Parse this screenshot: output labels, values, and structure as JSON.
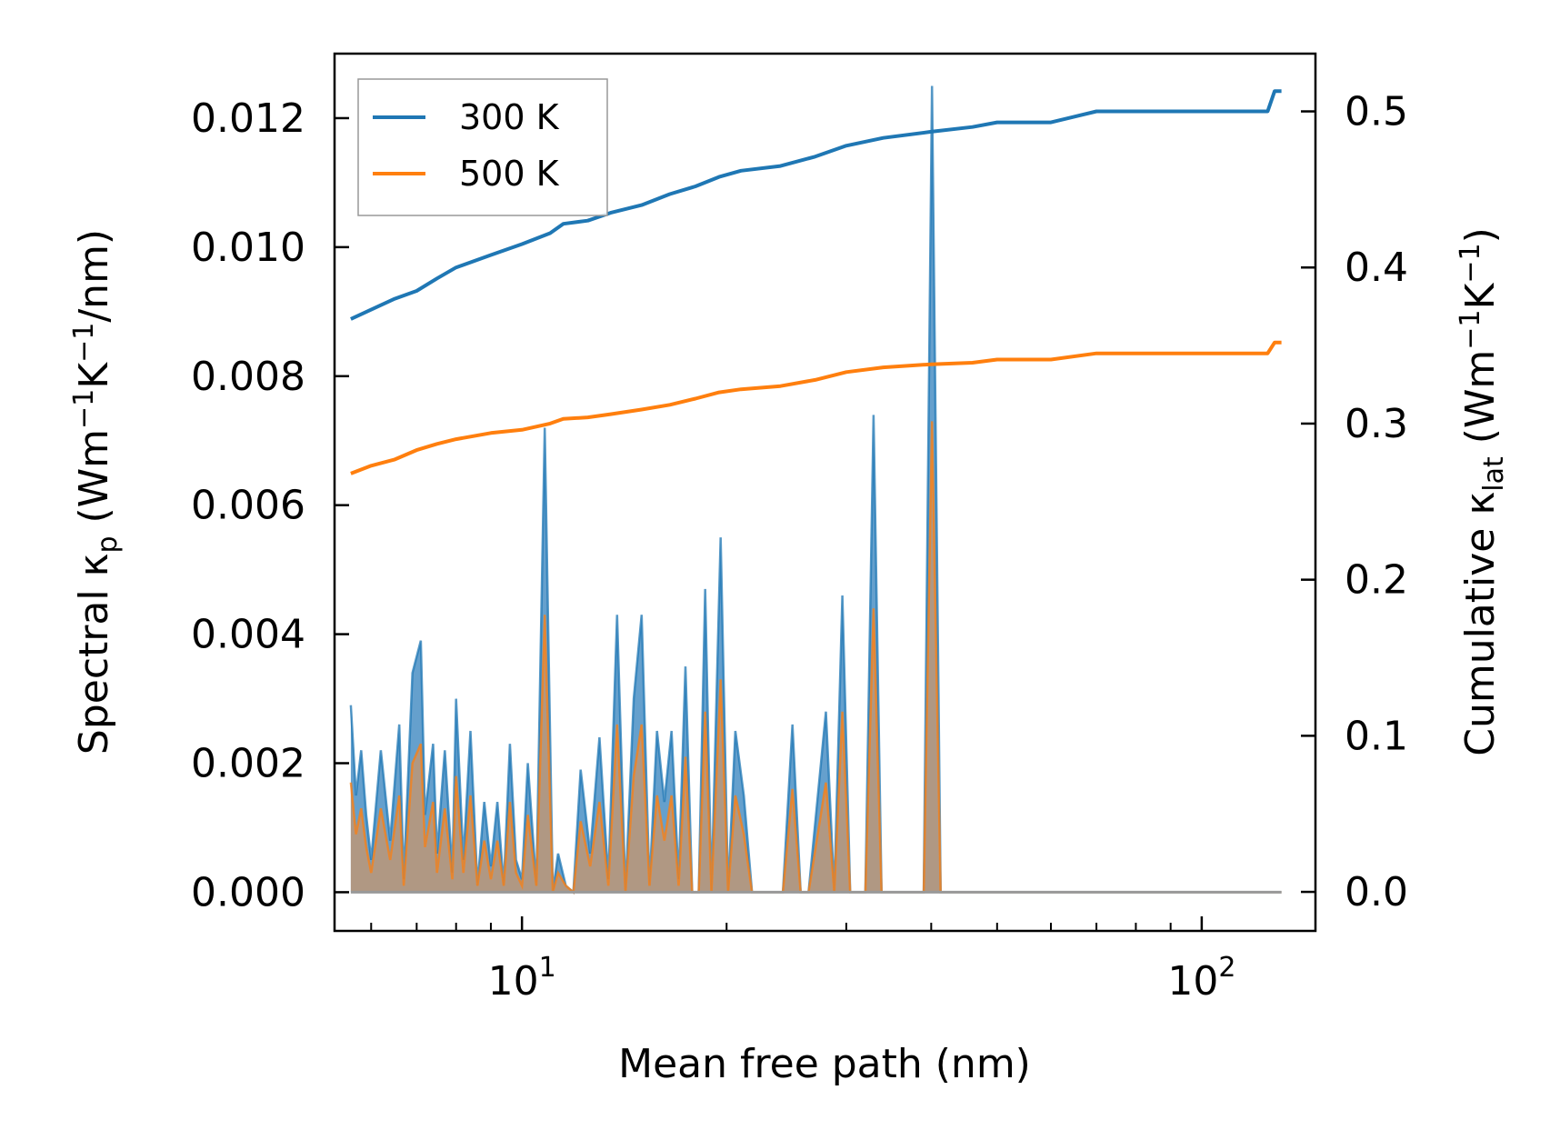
{
  "chart_data": {
    "type": "line",
    "xscale": "log",
    "xlim": [
      5.3,
      147
    ],
    "ylim_left": [
      -0.0006,
      0.013
    ],
    "ylim_right": [
      -0.025,
      0.537
    ],
    "xlabel": "Mean free path (nm)",
    "ylabel_left": {
      "base": "Spectral κ",
      "sub": "p",
      "units_open": " (Wm",
      "sup1": "−1",
      "mid": "K",
      "sup2": "−1",
      "units_close": "/nm)"
    },
    "ylabel_right": {
      "base": "Cumulative κ",
      "sub": "lat",
      "units_open": " (Wm",
      "sup1": "−1",
      "mid": "K",
      "sup2": "−1",
      "units_close": ")"
    },
    "xticks": [
      {
        "value": 10,
        "base": "10",
        "exp": "1"
      },
      {
        "value": 100,
        "base": "10",
        "exp": "2"
      }
    ],
    "yticks_left": [
      "0.000",
      "0.002",
      "0.004",
      "0.006",
      "0.008",
      "0.010",
      "0.012"
    ],
    "yticks_right": [
      "0.0",
      "0.1",
      "0.2",
      "0.3",
      "0.4",
      "0.5"
    ],
    "legend": {
      "position": "top-left",
      "entries": [
        "300 K",
        "500 K"
      ]
    },
    "colors": {
      "s300": "#1f77b4",
      "s500": "#ff7f0e",
      "fill300": "#4a8fc4",
      "fill500": "#c9956a"
    },
    "cumulative": [
      {
        "name": "300 K",
        "x": [
          5.6,
          6.0,
          6.5,
          7.0,
          7.5,
          8.0,
          9.0,
          10.0,
          11.0,
          11.5,
          12.5,
          13.5,
          15.0,
          16.5,
          18.0,
          19.5,
          21.0,
          24.0,
          27.0,
          30.0,
          34.0,
          40.0,
          46.0,
          50.0,
          60.0,
          70.0,
          90.0,
          110.0,
          125.0,
          128.0,
          131.0
        ],
        "values": [
          0.367,
          0.373,
          0.38,
          0.385,
          0.393,
          0.4,
          0.408,
          0.415,
          0.422,
          0.428,
          0.43,
          0.435,
          0.44,
          0.447,
          0.452,
          0.458,
          0.462,
          0.465,
          0.471,
          0.478,
          0.483,
          0.487,
          0.49,
          0.493,
          0.493,
          0.5,
          0.5,
          0.5,
          0.5,
          0.513,
          0.513
        ]
      },
      {
        "name": "500 K",
        "x": [
          5.6,
          6.0,
          6.5,
          7.0,
          7.5,
          8.0,
          9.0,
          10.0,
          11.0,
          11.5,
          12.5,
          13.5,
          15.0,
          16.5,
          18.0,
          19.5,
          21.0,
          24.0,
          27.0,
          30.0,
          34.0,
          40.0,
          46.0,
          50.0,
          60.0,
          70.0,
          90.0,
          110.0,
          125.0,
          128.0,
          131.0
        ],
        "values": [
          0.268,
          0.273,
          0.277,
          0.283,
          0.287,
          0.29,
          0.294,
          0.296,
          0.3,
          0.303,
          0.304,
          0.306,
          0.309,
          0.312,
          0.316,
          0.32,
          0.322,
          0.324,
          0.328,
          0.333,
          0.336,
          0.338,
          0.339,
          0.341,
          0.341,
          0.345,
          0.345,
          0.345,
          0.345,
          0.352,
          0.352
        ]
      }
    ],
    "spectral": [
      {
        "name": "300 K",
        "x": [
          5.6,
          5.7,
          5.8,
          5.9,
          6.0,
          6.2,
          6.4,
          6.6,
          6.7,
          6.9,
          7.1,
          7.2,
          7.4,
          7.5,
          7.7,
          7.9,
          8.0,
          8.2,
          8.4,
          8.6,
          8.8,
          9.0,
          9.2,
          9.4,
          9.6,
          9.8,
          10.0,
          10.2,
          10.5,
          10.8,
          11.1,
          11.3,
          11.6,
          11.9,
          12.2,
          12.6,
          13.0,
          13.4,
          13.8,
          14.2,
          14.6,
          15.0,
          15.4,
          15.8,
          16.2,
          16.6,
          17.0,
          17.4,
          17.8,
          18.2,
          18.6,
          19.0,
          19.6,
          20.1,
          20.6,
          21.2,
          21.8,
          24.2,
          25.0,
          25.7,
          26.4,
          28.0,
          28.8,
          29.6,
          30.4,
          32.0,
          32.9,
          33.8,
          34.7,
          39.0,
          40.1,
          41.3,
          42.5,
          45.0,
          46.3,
          47.6,
          49.0,
          50.4,
          51.8,
          64.0,
          66.1,
          68.0,
          69.9,
          119.0,
          122.0,
          125.0,
          128.0,
          130.0,
          131.0
        ],
        "values": [
          0.0029,
          0.0015,
          0.0022,
          0.0012,
          0.0005,
          0.0022,
          0.0008,
          0.0026,
          0.0002,
          0.0034,
          0.0039,
          0.0012,
          0.0023,
          0.0006,
          0.0022,
          0.0003,
          0.003,
          0.0005,
          0.0025,
          0.0001,
          0.0014,
          0.0004,
          0.0014,
          0.0001,
          0.0023,
          0.0005,
          0.0002,
          0.002,
          0.0001,
          0.0072,
          0.0,
          0.0006,
          0.0001,
          0.0,
          0.0019,
          0.0006,
          0.0024,
          0.0002,
          0.0043,
          0.0,
          0.003,
          0.0043,
          0.0001,
          0.0025,
          0.0014,
          0.0025,
          0.0002,
          0.0035,
          0.0,
          0.0,
          0.0047,
          0.0,
          0.0055,
          0.0,
          0.0025,
          0.0015,
          0.0,
          0.0,
          0.0026,
          0.0,
          0.0,
          0.0028,
          0.0,
          0.0046,
          0.0,
          0.0,
          0.0074,
          0.0,
          0.0,
          0.0,
          0.0125,
          0.0,
          0.0,
          0.0,
          0.0,
          0.0,
          0.0,
          0.0,
          0.0,
          0.0,
          0.0,
          0.0,
          0.0,
          0.0,
          0.0,
          0.0,
          0.0,
          0.0,
          0.0
        ]
      },
      {
        "name": "500 K",
        "x": [
          5.6,
          5.7,
          5.8,
          5.9,
          6.0,
          6.2,
          6.4,
          6.6,
          6.7,
          6.9,
          7.1,
          7.2,
          7.4,
          7.5,
          7.7,
          7.9,
          8.0,
          8.2,
          8.4,
          8.6,
          8.8,
          9.0,
          9.2,
          9.4,
          9.6,
          9.8,
          10.0,
          10.2,
          10.5,
          10.8,
          11.1,
          11.3,
          11.6,
          11.9,
          12.2,
          12.6,
          13.0,
          13.4,
          13.8,
          14.2,
          14.6,
          15.0,
          15.4,
          15.8,
          16.2,
          16.6,
          17.0,
          17.4,
          17.8,
          18.2,
          18.6,
          19.0,
          19.6,
          20.1,
          20.6,
          21.2,
          21.8,
          24.2,
          25.0,
          25.7,
          26.4,
          28.0,
          28.8,
          29.6,
          30.4,
          32.0,
          32.9,
          33.8,
          34.7,
          39.0,
          40.1,
          41.3,
          42.5,
          45.0,
          46.3,
          47.6,
          49.0,
          50.4,
          51.8,
          64.0,
          66.1,
          68.0,
          69.9,
          119.0,
          122.0,
          125.0,
          128.0,
          130.0,
          131.0
        ],
        "values": [
          0.0017,
          0.0009,
          0.0013,
          0.0007,
          0.0003,
          0.0013,
          0.0005,
          0.0015,
          0.0001,
          0.002,
          0.0023,
          0.0007,
          0.0014,
          0.0003,
          0.0013,
          0.0002,
          0.0018,
          0.0003,
          0.0015,
          0.0001,
          0.0008,
          0.0002,
          0.0008,
          0.0001,
          0.0014,
          0.0003,
          0.0001,
          0.0012,
          0.0001,
          0.0043,
          0.0,
          0.0003,
          0.0001,
          0.0,
          0.0011,
          0.0004,
          0.0014,
          0.0001,
          0.0026,
          0.0,
          0.0018,
          0.0026,
          0.0001,
          0.0015,
          0.0008,
          0.0015,
          0.0001,
          0.0021,
          0.0,
          0.0,
          0.0028,
          0.0,
          0.0033,
          0.0,
          0.0015,
          0.0009,
          0.0,
          0.0,
          0.0016,
          0.0,
          0.0,
          0.0017,
          0.0,
          0.0028,
          0.0,
          0.0,
          0.0044,
          0.0,
          0.0,
          0.0,
          0.0073,
          0.0,
          0.0,
          0.0,
          0.0,
          0.0,
          0.0,
          0.0,
          0.0,
          0.0,
          0.0,
          0.0,
          0.0,
          0.0,
          0.0,
          0.0,
          0.0,
          0.0,
          0.0
        ]
      }
    ]
  }
}
